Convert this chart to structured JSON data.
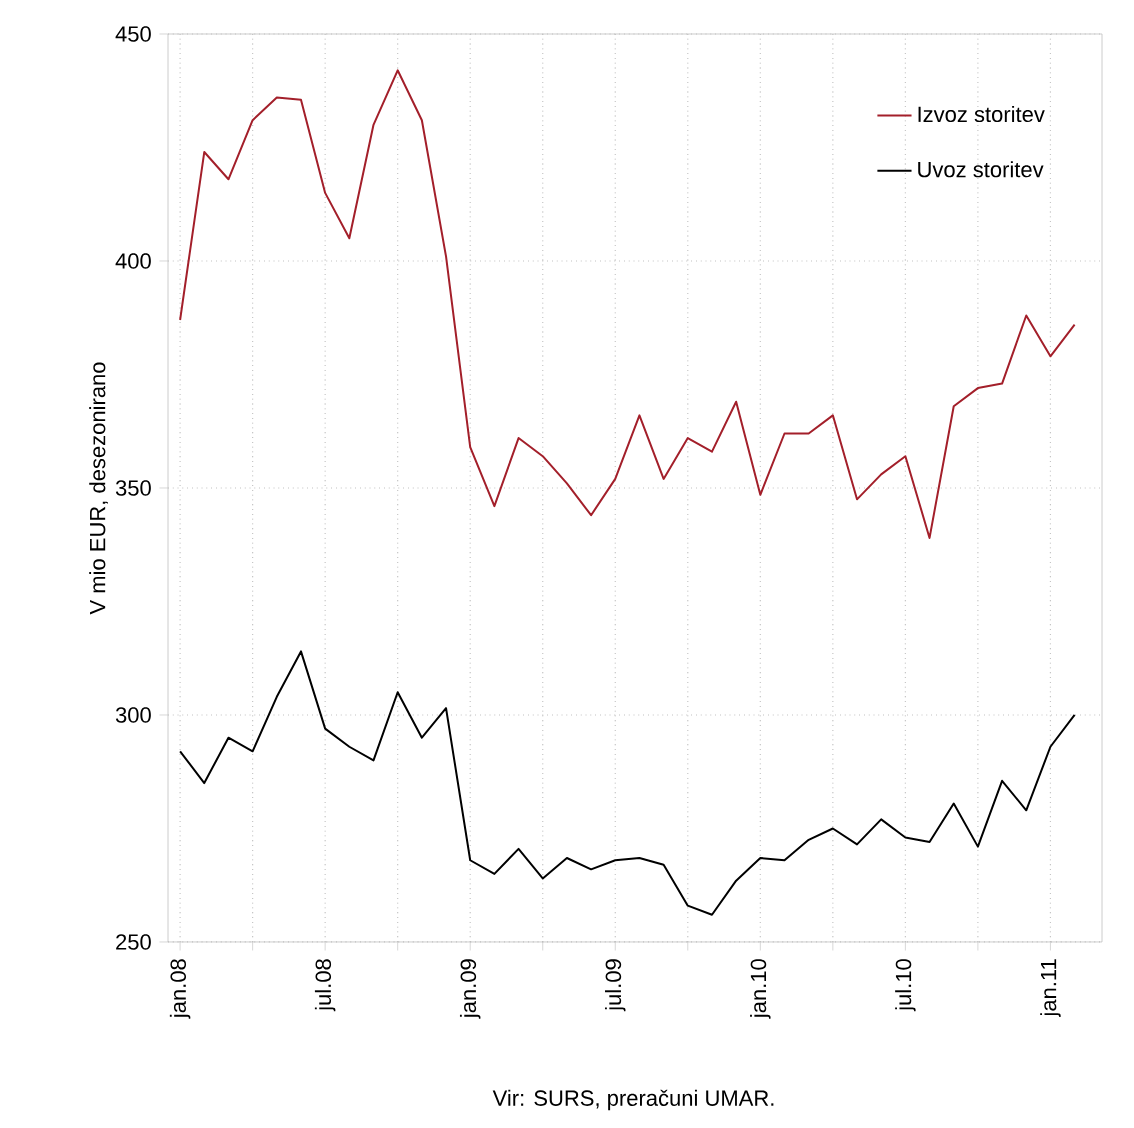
{
  "chart_data": {
    "type": "line",
    "ylabel": "V mio EUR, desezonirano",
    "annotations": [
      "Vir: SURS, preračuni UMAR."
    ],
    "x": [
      "2008-01",
      "2008-02",
      "2008-03",
      "2008-04",
      "2008-05",
      "2008-06",
      "2008-07",
      "2008-08",
      "2008-09",
      "2008-10",
      "2008-11",
      "2008-12",
      "2009-01",
      "2009-02",
      "2009-03",
      "2009-04",
      "2009-05",
      "2009-06",
      "2009-07",
      "2009-08",
      "2009-09",
      "2009-10",
      "2009-11",
      "2009-12",
      "2010-01",
      "2010-02",
      "2010-03",
      "2010-04",
      "2010-05",
      "2010-06",
      "2010-07",
      "2010-08",
      "2010-09",
      "2010-10",
      "2010-11",
      "2010-12",
      "2011-01",
      "2011-02"
    ],
    "series": [
      {
        "name": "Izvoz storitev",
        "color": "#a31f2a",
        "values": [
          387,
          424,
          418,
          431,
          436,
          435.5,
          415,
          405,
          430,
          442,
          431,
          401,
          359,
          346,
          361,
          357,
          351,
          344,
          352,
          366,
          352,
          361,
          358,
          369,
          348.5,
          362,
          362,
          366,
          347.5,
          353,
          357,
          339,
          368,
          372,
          373,
          388,
          379,
          386
        ]
      },
      {
        "name": "Uvoz storitev",
        "color": "#000000",
        "values": [
          292,
          285,
          295,
          292,
          304,
          314,
          297,
          293,
          290,
          305,
          295,
          301.5,
          268,
          265,
          270.5,
          264,
          268.5,
          266,
          268,
          268.5,
          267,
          258,
          256,
          263.5,
          268.5,
          268,
          272.5,
          275,
          271.5,
          277,
          273,
          272,
          280.5,
          271,
          285.5,
          279,
          293,
          300
        ]
      }
    ],
    "xlim": [
      "2007-12-16",
      "2011-03-05"
    ],
    "xticks": [
      {
        "value": "2008-01",
        "label": "jan.08"
      },
      {
        "value": "2008-04",
        "label": null
      },
      {
        "value": "2008-07",
        "label": "jul.08"
      },
      {
        "value": "2008-10",
        "label": null
      },
      {
        "value": "2009-01",
        "label": "jan.09"
      },
      {
        "value": "2009-04",
        "label": null
      },
      {
        "value": "2009-07",
        "label": "jul.09"
      },
      {
        "value": "2009-10",
        "label": null
      },
      {
        "value": "2010-01",
        "label": "jan.10"
      },
      {
        "value": "2010-04",
        "label": null
      },
      {
        "value": "2010-07",
        "label": "jul.10"
      },
      {
        "value": "2010-10",
        "label": null
      },
      {
        "value": "2011-01",
        "label": "jan.11"
      }
    ],
    "ylim": [
      250,
      450
    ],
    "yticks": [
      250,
      300,
      350,
      400,
      450
    ],
    "grid": true,
    "legend": "top right",
    "marker": "none",
    "line_style": "solid"
  }
}
